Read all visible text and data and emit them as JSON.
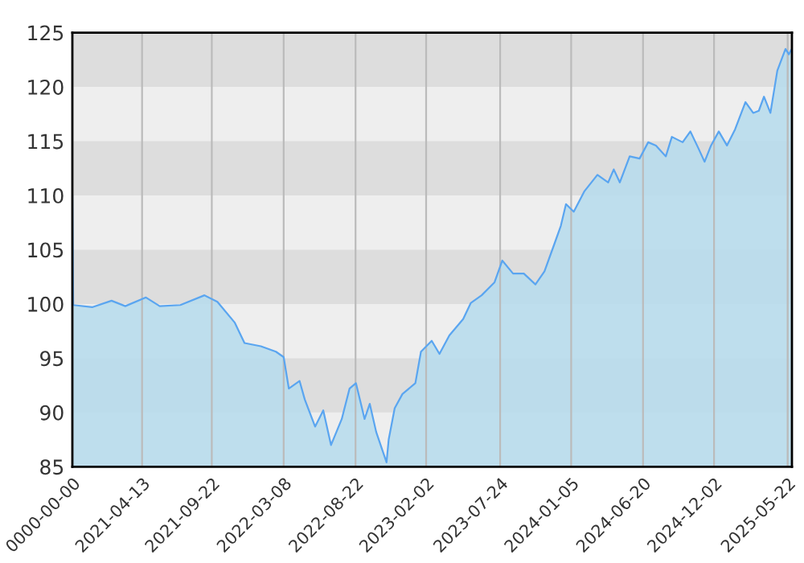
{
  "chart_data": {
    "type": "area",
    "x": [
      "2020-11-02",
      "2020-11-04",
      "2020-12-18",
      "2021-02-01",
      "2021-03-05",
      "2021-04-22",
      "2021-05-24",
      "2021-07-11",
      "2021-09-05",
      "2021-10-05",
      "2021-11-14",
      "2021-12-07",
      "2022-01-14",
      "2022-02-18",
      "2022-03-08",
      "2022-03-20",
      "2022-04-14",
      "2022-04-26",
      "2022-05-20",
      "2022-06-08",
      "2022-06-26",
      "2022-07-21",
      "2022-08-08",
      "2022-08-23",
      "2022-09-12",
      "2022-09-24",
      "2022-10-09",
      "2022-11-02",
      "2022-11-07",
      "2022-11-21",
      "2022-12-09",
      "2023-01-08",
      "2023-01-21",
      "2023-02-15",
      "2023-03-05",
      "2023-03-28",
      "2023-04-29",
      "2023-05-17",
      "2023-06-11",
      "2023-07-11",
      "2023-07-29",
      "2023-08-23",
      "2023-09-17",
      "2023-10-14",
      "2023-11-04",
      "2023-11-24",
      "2023-12-12",
      "2023-12-24",
      "2024-01-11",
      "2024-02-05",
      "2024-03-06",
      "2024-03-31",
      "2024-04-13",
      "2024-04-27",
      "2024-05-20",
      "2024-06-12",
      "2024-07-02",
      "2024-07-20",
      "2024-08-12",
      "2024-08-26",
      "2024-09-20",
      "2024-10-08",
      "2024-10-26",
      "2024-11-10",
      "2024-11-25",
      "2024-12-13",
      "2025-01-01",
      "2025-01-20",
      "2025-02-13",
      "2025-03-03",
      "2025-03-16",
      "2025-03-28",
      "2025-04-12",
      "2025-04-28",
      "2025-05-17",
      "2025-05-25",
      "2025-05-30"
    ],
    "series": [
      {
        "color": "#5aa5f0",
        "values": [
          110,
          99.9,
          99.7,
          100.3,
          99.8,
          100.6,
          99.8,
          99.9,
          100.8,
          100.2,
          98.3,
          96.4,
          96.1,
          95.6,
          95.1,
          92.2,
          92.9,
          91.2,
          88.7,
          90.2,
          87.0,
          89.4,
          92.2,
          92.7,
          89.4,
          90.8,
          88.2,
          85.4,
          87.5,
          90.4,
          91.7,
          92.7,
          95.6,
          96.6,
          95.4,
          97.1,
          98.6,
          100.1,
          100.8,
          102.0,
          104.0,
          102.8,
          102.8,
          101.8,
          103.0,
          105.2,
          107.2,
          109.2,
          108.5,
          110.4,
          111.9,
          111.2,
          112.4,
          111.2,
          113.6,
          113.4,
          114.9,
          114.6,
          113.6,
          115.4,
          114.9,
          115.9,
          114.4,
          113.1,
          114.6,
          115.9,
          114.6,
          116.1,
          118.6,
          117.6,
          117.8,
          119.1,
          117.6,
          121.5,
          123.5,
          123.0,
          123.4
        ]
      }
    ],
    "xlim": [
      "2020-11-02",
      "2025-06-01"
    ],
    "xticks": [
      {
        "value": "2020-11-02",
        "label": "0000-00-00"
      },
      "2021-04-13",
      "2021-09-22",
      "2022-03-08",
      "2022-08-22",
      "2023-02-02",
      "2023-07-24",
      "2024-01-05",
      "2024-06-20",
      "2024-12-02",
      "2025-05-22"
    ],
    "ylim": [
      85,
      125
    ],
    "yticks": [
      85,
      90,
      95,
      100,
      105,
      110,
      115,
      120,
      125
    ],
    "grid": "x",
    "bands": [
      {
        "axis": "y",
        "from": 90,
        "to": 95,
        "color": "#dddddd"
      },
      {
        "axis": "y",
        "from": 100,
        "to": 105,
        "color": "#dddddd"
      },
      {
        "axis": "y",
        "from": 110,
        "to": 115,
        "color": "#dddddd"
      },
      {
        "axis": "y",
        "from": 120,
        "to": 125,
        "color": "#dddddd"
      }
    ]
  }
}
